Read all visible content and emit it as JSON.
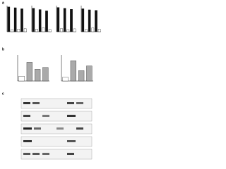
{
  "panels": {
    "a": {
      "label": "a",
      "charts": [
        {
          "ylim": [
            0,
            100
          ],
          "values": [
            95,
            8,
            92,
            10,
            88,
            12
          ]
        },
        {
          "ylim": [
            0,
            100
          ],
          "values": [
            90,
            10,
            85,
            15,
            80,
            9
          ]
        },
        {
          "ylim": [
            0,
            100
          ],
          "values": [
            93,
            12,
            90,
            8,
            86,
            11
          ]
        },
        {
          "ylim": [
            0,
            100
          ],
          "values": [
            88,
            9,
            84,
            14,
            82,
            10
          ]
        }
      ]
    },
    "b": {
      "label": "b",
      "charts": [
        {
          "ylim": [
            0,
            100
          ],
          "values": [
            18,
            72,
            45,
            52
          ]
        },
        {
          "ylim": [
            0,
            100
          ],
          "values": [
            15,
            78,
            40,
            58
          ]
        }
      ]
    },
    "c": {
      "label": "c"
    }
  }
}
